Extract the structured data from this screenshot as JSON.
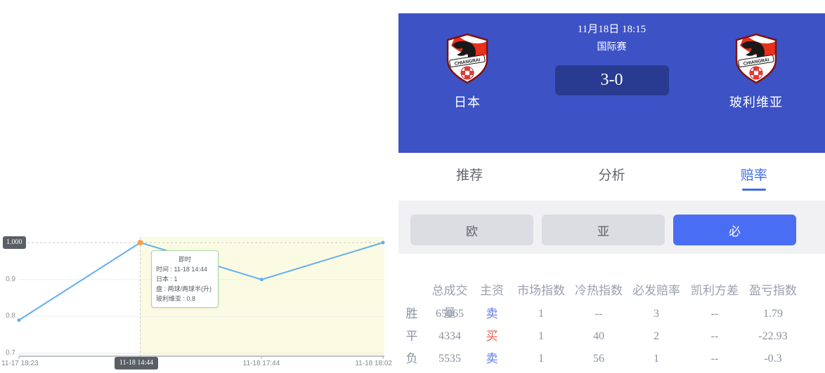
{
  "match": {
    "datetime": "11月18日 18:15",
    "league": "国际赛",
    "score": "3-0",
    "home_name": "日本",
    "away_name": "玻利维亚",
    "logo_icon": "chiangrai-united-crest-icon"
  },
  "tabs": [
    {
      "label": "推荐",
      "active": false
    },
    {
      "label": "分析",
      "active": false
    },
    {
      "label": "赔率",
      "active": true
    }
  ],
  "subtabs": [
    {
      "label": "欧",
      "active": false
    },
    {
      "label": "亚",
      "active": false
    },
    {
      "label": "必",
      "active": true
    }
  ],
  "table": {
    "headers": [
      "",
      "总成交量",
      "主资",
      "市场指数",
      "冷热指数",
      "必发赔率",
      "凯利方差",
      "盈亏指数"
    ],
    "rows": [
      {
        "label": "胜",
        "volume": "65065",
        "main": "卖",
        "main_style": "sell",
        "market": "1",
        "hot": "--",
        "bifa": "3",
        "kelly": "--",
        "pl": "1.79"
      },
      {
        "label": "平",
        "volume": "4334",
        "main": "买",
        "main_style": "buy",
        "market": "1",
        "hot": "40",
        "bifa": "2",
        "kelly": "--",
        "pl": "-22.93"
      },
      {
        "label": "负",
        "volume": "5535",
        "main": "卖",
        "main_style": "sell",
        "market": "1",
        "hot": "56",
        "bifa": "1",
        "kelly": "--",
        "pl": "-0.3"
      }
    ]
  },
  "chart_data": {
    "type": "line",
    "title": "",
    "x": [
      "11-17 18:23",
      "11-18 14:44",
      "11-18 17:44",
      "11-18 18:02"
    ],
    "values": [
      0.79,
      1.0,
      0.9,
      1.0
    ],
    "yticks": [
      "1.000",
      "0.9",
      "0.8",
      "0.7"
    ],
    "ylim": [
      0.68,
      1.03
    ],
    "grid": true,
    "highlight_index": 1,
    "y_badge": "1.000",
    "x_badge": "11-18 14:44",
    "shaded_from_index": 1,
    "tooltip": {
      "title": "即时",
      "lines": [
        "时间 : 11-18 14:44",
        "日本 : 1",
        "盘 : 两球/两球半(升)",
        "玻利维亚 : 0.8"
      ]
    },
    "line_color": "#64aef0",
    "point_color": "#f6a04d",
    "shade_color": "#fbfbe3"
  },
  "colors": {
    "header_blue": "#3d52c5",
    "score_bg": "#293b90",
    "accent_blue": "#3e6bf2",
    "subtab_active_blue": "#4a6ef3",
    "sell_blue": "#5b79f0",
    "buy_red": "#ef5a47",
    "badge_bg": "#5a5f66",
    "tooltip_border": "#a5d6a7"
  }
}
